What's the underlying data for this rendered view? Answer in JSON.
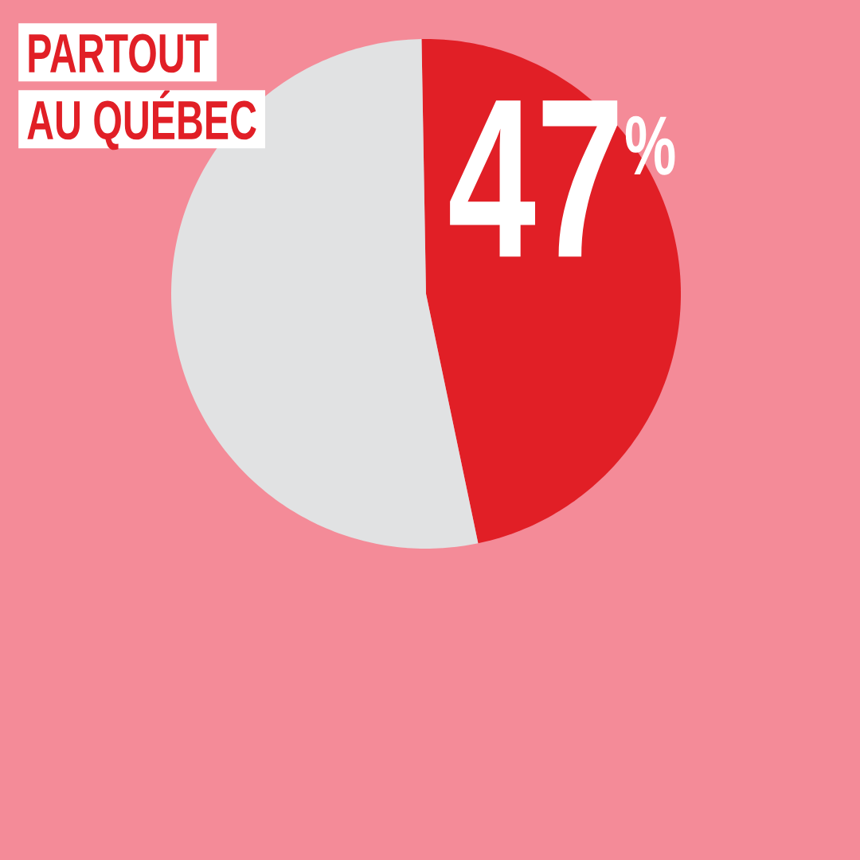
{
  "chart_data": {
    "type": "pie",
    "title": "PARTOUT",
    "subtitle": "AU QUÉBEC",
    "categories": [
      null,
      null
    ],
    "values": [
      47,
      53
    ],
    "colors": [
      "#e11f26",
      "#e1e2e3"
    ],
    "value_labels": [
      "47$^{%}$",
      null
    ]
  }
}
